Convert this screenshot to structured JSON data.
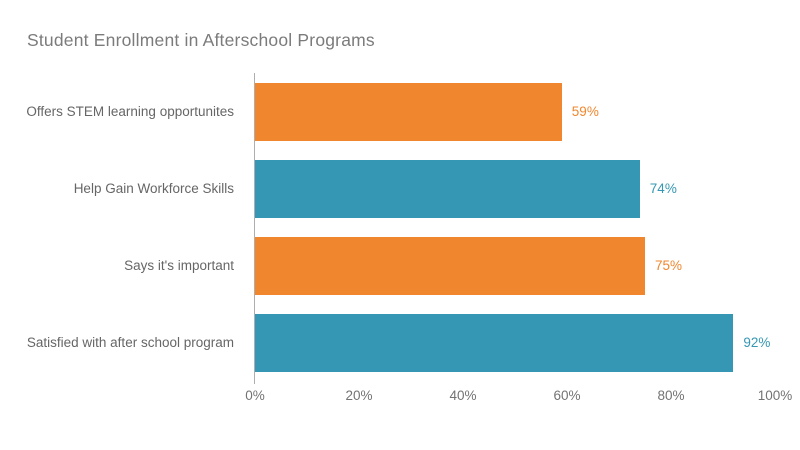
{
  "chart_data": {
    "type": "bar",
    "orientation": "horizontal",
    "title": "Student Enrollment in Afterschool Programs",
    "categories": [
      "Offers STEM learning opportunites",
      "Help Gain Workforce Skills",
      "Says it's important",
      "Satisfied with after school program"
    ],
    "values": [
      59,
      74,
      75,
      92
    ],
    "value_labels": [
      "59%",
      "74%",
      "75%",
      "92%"
    ],
    "bar_colors": [
      "#f0872f",
      "#3597b3",
      "#f0872f",
      "#3597b3"
    ],
    "x_ticks": [
      "0%",
      "20%",
      "40%",
      "60%",
      "80%",
      "100%"
    ],
    "xlim": [
      0,
      100
    ],
    "xlabel": "",
    "ylabel": "",
    "grid": false,
    "legend": false
  },
  "colors": {
    "orange": "#f0872f",
    "blue": "#3597b3",
    "title_text": "#7b7b7b",
    "category_text": "#666666",
    "tick_text": "#737373",
    "axis_line": "#aeaeae",
    "background": "#ffffff"
  }
}
